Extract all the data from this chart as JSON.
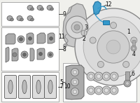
{
  "bg": "#f0f0ec",
  "white": "#ffffff",
  "lc": "#555555",
  "gray1": "#c8c8c8",
  "gray2": "#aaaaaa",
  "gray3": "#888888",
  "gray4": "#666666",
  "gray5": "#dddddd",
  "blue": "#3399cc",
  "blue2": "#1a6fa0",
  "box_edge": "#aaaaaa",
  "fig_w": 2.0,
  "fig_h": 1.47,
  "dpi": 100
}
